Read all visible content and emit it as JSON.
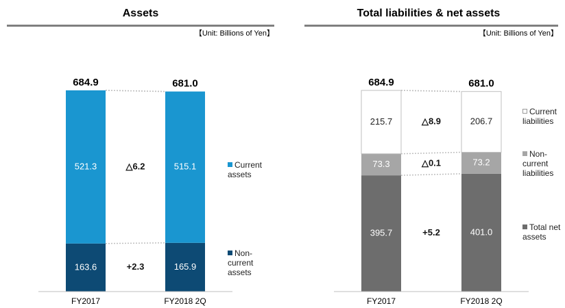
{
  "chart_data": [
    {
      "type": "bar",
      "stacked": true,
      "title": "Assets",
      "unit": "【Unit: Billions of Yen】",
      "categories": [
        "FY2017",
        "FY2018 2Q"
      ],
      "totals": [
        684.9,
        681.0
      ],
      "totals_labels": [
        "684.9",
        "681.0"
      ],
      "series": [
        {
          "name": "Non-current assets",
          "color": "#0d4a74",
          "text_color": "#ffffff",
          "values": [
            163.6,
            165.9
          ],
          "change": "+2.3"
        },
        {
          "name": "Current assets",
          "color": "#1a96d0",
          "text_color": "#ffffff",
          "values": [
            521.3,
            515.1
          ],
          "change": "△6.2"
        }
      ]
    },
    {
      "type": "bar",
      "stacked": true,
      "title": "Total liabilities & net assets",
      "unit": "【Unit: Billions of Yen】",
      "categories": [
        "FY2017",
        "FY2018 2Q"
      ],
      "totals": [
        684.9,
        681.0
      ],
      "totals_labels": [
        "684.9",
        "681.0"
      ],
      "series": [
        {
          "name": "Total net assets",
          "color": "#6d6d6d",
          "text_color": "#ffffff",
          "values": [
            395.7,
            401.0
          ],
          "value_labels": [
            "395.7",
            "401.0"
          ],
          "change": "+5.2"
        },
        {
          "name": "Non-current liabilities",
          "color": "#a6a6a6",
          "text_color": "#ffffff",
          "values": [
            73.3,
            73.2
          ],
          "change": "△0.1"
        },
        {
          "name": "Current liabilities",
          "color": "#ffffff",
          "text_color": "#222222",
          "values": [
            215.7,
            206.7
          ],
          "change": "△8.9"
        }
      ]
    }
  ]
}
